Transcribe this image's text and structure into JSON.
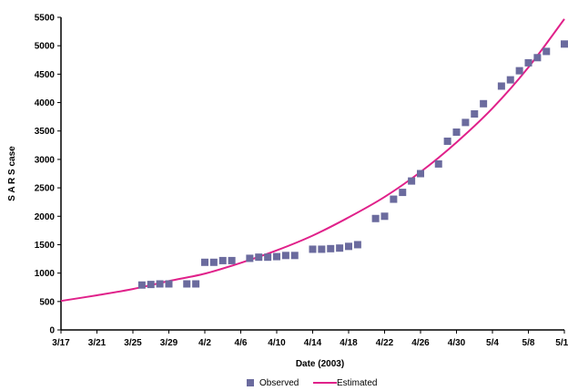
{
  "chart_data": {
    "type": "line",
    "title": "",
    "xlabel": "Date (2003)",
    "ylabel": "S A R S case",
    "ylim": [
      0,
      5500
    ],
    "y_ticks": [
      0,
      500,
      1000,
      1500,
      2000,
      2500,
      3000,
      3500,
      4000,
      4500,
      5000,
      5500
    ],
    "x_tick_labels": [
      "3/17",
      "3/21",
      "3/25",
      "3/29",
      "4/2",
      "4/6",
      "4/10",
      "4/14",
      "4/18",
      "4/22",
      "4/26",
      "4/30",
      "5/4",
      "5/8",
      "5/12"
    ],
    "grid": false,
    "legend_position": "bottom",
    "series": [
      {
        "name": "Observed",
        "kind": "scatter",
        "color": "#6b6b9e",
        "x": [
          "3/26",
          "3/27",
          "3/28",
          "3/29",
          "3/31",
          "4/1",
          "4/2",
          "4/3",
          "4/4",
          "4/5",
          "4/7",
          "4/8",
          "4/9",
          "4/10",
          "4/11",
          "4/12",
          "4/14",
          "4/15",
          "4/16",
          "4/17",
          "4/18",
          "4/19",
          "4/21",
          "4/22",
          "4/23",
          "4/24",
          "4/25",
          "4/26",
          "4/28",
          "4/29",
          "4/30",
          "5/1",
          "5/2",
          "5/3",
          "5/5",
          "5/6",
          "5/7",
          "5/8",
          "5/9",
          "5/10",
          "5/12"
        ],
        "values": [
          790,
          800,
          810,
          810,
          810,
          810,
          1190,
          1190,
          1220,
          1220,
          1260,
          1280,
          1280,
          1290,
          1310,
          1310,
          1420,
          1420,
          1430,
          1440,
          1470,
          1500,
          1960,
          2000,
          2300,
          2420,
          2620,
          2750,
          2920,
          3320,
          3480,
          3650,
          3800,
          3980,
          4290,
          4400,
          4560,
          4700,
          4790,
          4900,
          5030
        ]
      },
      {
        "name": "Estimated",
        "kind": "line",
        "color": "#e0218a",
        "x": [
          "3/17",
          "3/21",
          "3/25",
          "3/29",
          "4/2",
          "4/6",
          "4/10",
          "4/14",
          "4/18",
          "4/22",
          "4/26",
          "4/30",
          "5/4",
          "5/8",
          "5/12"
        ],
        "values": [
          510,
          610,
          720,
          860,
          990,
          1180,
          1400,
          1660,
          1980,
          2340,
          2780,
          3300,
          3900,
          4620,
          5470
        ]
      }
    ]
  }
}
